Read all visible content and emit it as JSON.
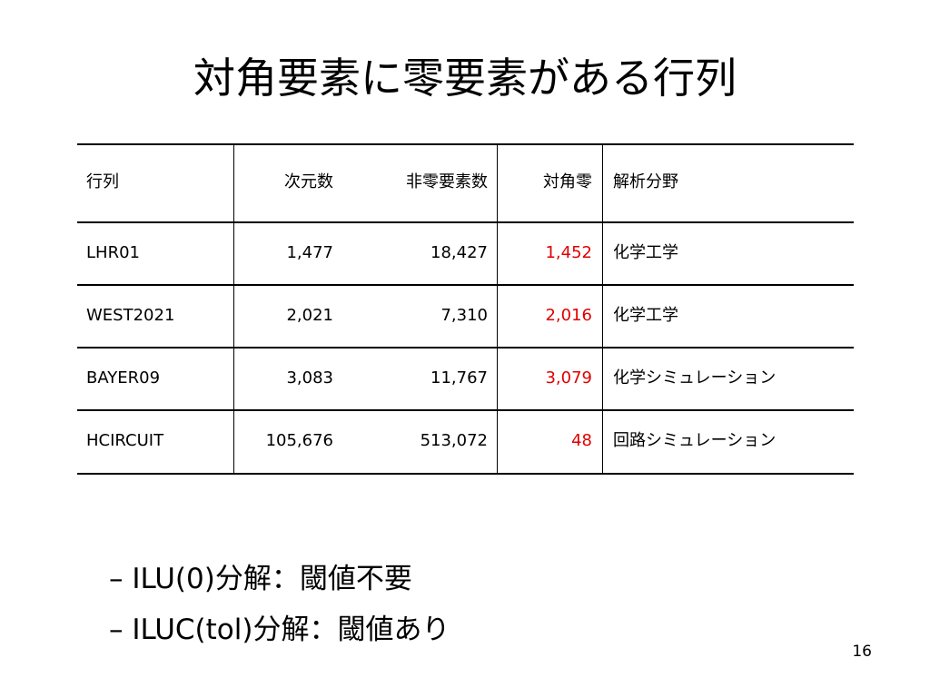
{
  "title": "対角要素に零要素がある行列",
  "table": {
    "header": [
      "行列",
      "次元数",
      "非零要素数",
      "対角零",
      "解析分野"
    ],
    "rows": [
      [
        "LHR01",
        "1,477",
        "18,427",
        "1,452",
        "化学工学"
      ],
      [
        "WEST2021",
        "2,021",
        "7,310",
        "2,016",
        "化学工学"
      ],
      [
        "BAYER09",
        "3,083",
        "11,767",
        "3,079",
        "化学シミュレーション"
      ],
      [
        "HCIRCUIT",
        "105,676",
        "513,072",
        "48",
        "回路シミュレーション"
      ]
    ]
  },
  "bullets": [
    "– ILU(0)分解：閾値不要",
    "– ILUC(tol)分解：閾値あり"
  ],
  "page_number": "16"
}
